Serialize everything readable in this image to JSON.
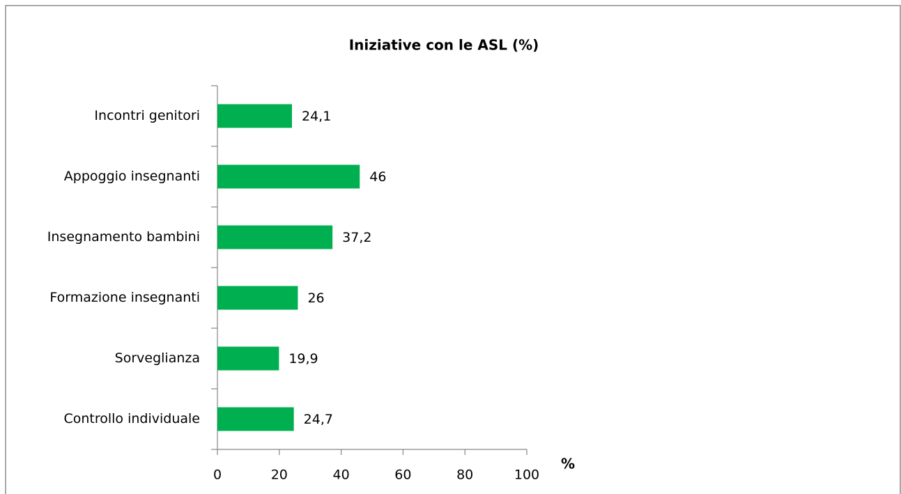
{
  "chart_data": {
    "type": "barh",
    "title": "Iniziative con le ASL (%)",
    "xlabel": "%",
    "categories": [
      "Incontri genitori",
      "Appoggio insegnanti",
      "Insegnamento bambini",
      "Formazione insegnanti",
      "Sorveglianza",
      "Controllo individuale"
    ],
    "values": [
      24.1,
      46,
      37.2,
      26,
      19.9,
      24.7
    ],
    "value_labels": [
      "24,1",
      "46",
      "37,2",
      "26",
      "19,9",
      "24,7"
    ],
    "color": "#00b050",
    "xlim": [
      0,
      100
    ],
    "xticks": [
      0,
      20,
      40,
      60,
      80,
      100
    ],
    "grid": false
  }
}
